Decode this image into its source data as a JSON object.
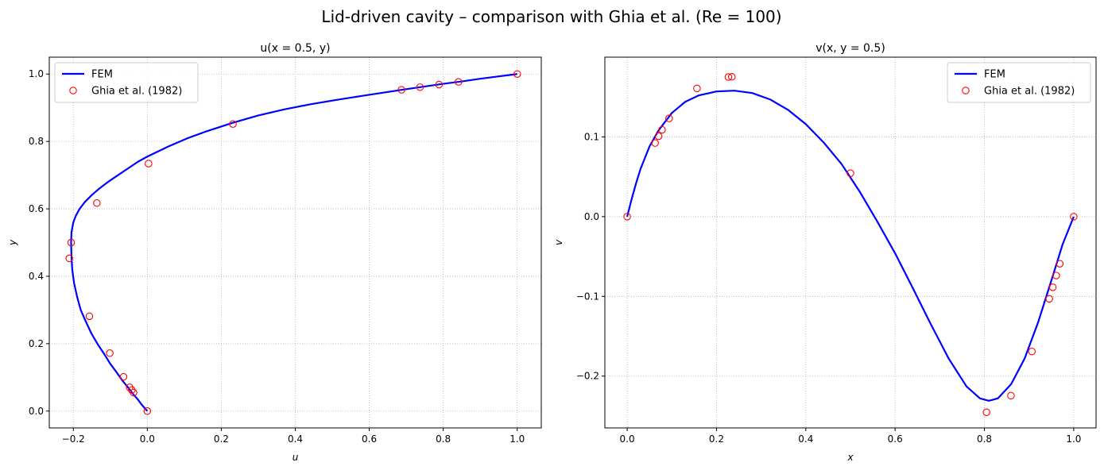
{
  "figure": {
    "suptitle": "Lid-driven cavity – comparison with Ghia et al. (Re = 100)"
  },
  "chart_data": [
    {
      "type": "line",
      "title": "u(x = 0.5,  y)",
      "xlabel": "u",
      "ylabel": "y",
      "xlim": [
        -0.265,
        1.065
      ],
      "ylim": [
        -0.05,
        1.05
      ],
      "xticks": [
        "−0.2",
        "0.0",
        "0.2",
        "0.4",
        "0.6",
        "0.8",
        "1.0"
      ],
      "yticks": [
        "0.0",
        "0.2",
        "0.4",
        "0.6",
        "0.8",
        "1.0"
      ],
      "grid": true,
      "legend": {
        "position": "top-left",
        "entries": [
          "FEM",
          "Ghia et al. (1982)"
        ]
      },
      "series": [
        {
          "name": "FEM",
          "style": "line",
          "color": "#0000ff",
          "x": [
            0.0,
            -0.008,
            -0.016,
            -0.026,
            -0.038,
            -0.052,
            -0.067,
            -0.083,
            -0.1,
            -0.117,
            -0.135,
            -0.151,
            -0.166,
            -0.18,
            -0.19,
            -0.198,
            -0.203,
            -0.205,
            -0.206,
            -0.205,
            -0.2,
            -0.193,
            -0.183,
            -0.169,
            -0.151,
            -0.13,
            -0.106,
            -0.079,
            -0.052,
            -0.025,
            0.0,
            0.057,
            0.11,
            0.16,
            0.23,
            0.3,
            0.37,
            0.44,
            0.51,
            0.58,
            0.64,
            0.7,
            0.75,
            0.8,
            0.85,
            0.9,
            0.95,
            1.0
          ],
          "y": [
            0.0,
            0.01,
            0.02,
            0.035,
            0.05,
            0.07,
            0.09,
            0.115,
            0.14,
            0.17,
            0.2,
            0.23,
            0.265,
            0.3,
            0.34,
            0.38,
            0.42,
            0.46,
            0.5,
            0.53,
            0.56,
            0.58,
            0.6,
            0.62,
            0.64,
            0.66,
            0.68,
            0.7,
            0.72,
            0.74,
            0.755,
            0.785,
            0.81,
            0.83,
            0.855,
            0.877,
            0.895,
            0.91,
            0.923,
            0.935,
            0.945,
            0.955,
            0.963,
            0.971,
            0.978,
            0.986,
            0.993,
            1.0
          ]
        },
        {
          "name": "Ghia et al. (1982)",
          "style": "markers",
          "color": "#ff0000",
          "x": [
            0.0,
            -0.0372,
            -0.0419,
            -0.0478,
            -0.0643,
            -0.1015,
            -0.1566,
            -0.2109,
            -0.2058,
            -0.1364,
            0.0033,
            0.2315,
            0.6872,
            0.7372,
            0.7887,
            0.8412,
            1.0
          ],
          "y": [
            0.0,
            0.0547,
            0.0625,
            0.0703,
            0.1016,
            0.1719,
            0.2813,
            0.4531,
            0.5,
            0.6172,
            0.7344,
            0.8516,
            0.9531,
            0.9609,
            0.9688,
            0.9766,
            1.0
          ]
        }
      ]
    },
    {
      "type": "line",
      "title": "v(x,  y = 0.5)",
      "xlabel": "x",
      "ylabel": "v",
      "xlim": [
        -0.05,
        1.05
      ],
      "ylim": [
        -0.265,
        0.2
      ],
      "xticks": [
        "0.0",
        "0.2",
        "0.4",
        "0.6",
        "0.8",
        "1.0"
      ],
      "yticks": [
        "−0.2",
        "−0.1",
        "0.0",
        "0.1"
      ],
      "grid": true,
      "legend": {
        "position": "top-right",
        "entries": [
          "FEM",
          "Ghia et al. (1982)"
        ]
      },
      "series": [
        {
          "name": "FEM",
          "style": "line",
          "color": "#0000ff",
          "x": [
            0.0,
            0.01,
            0.02,
            0.03,
            0.05,
            0.07,
            0.1,
            0.13,
            0.16,
            0.2,
            0.24,
            0.28,
            0.32,
            0.36,
            0.4,
            0.44,
            0.48,
            0.52,
            0.56,
            0.6,
            0.64,
            0.68,
            0.72,
            0.76,
            0.79,
            0.81,
            0.83,
            0.86,
            0.89,
            0.92,
            0.95,
            0.975,
            1.0
          ],
          "y": [
            0.0,
            0.022,
            0.042,
            0.06,
            0.088,
            0.108,
            0.13,
            0.144,
            0.152,
            0.157,
            0.158,
            0.155,
            0.147,
            0.134,
            0.116,
            0.093,
            0.066,
            0.032,
            -0.006,
            -0.046,
            -0.09,
            -0.135,
            -0.178,
            -0.213,
            -0.228,
            -0.231,
            -0.228,
            -0.21,
            -0.178,
            -0.133,
            -0.08,
            -0.035,
            0.0
          ]
        },
        {
          "name": "Ghia et al. (1982)",
          "style": "markers",
          "color": "#ff0000",
          "x": [
            0.0,
            0.0625,
            0.0703,
            0.0781,
            0.0938,
            0.1563,
            0.2266,
            0.2344,
            0.5,
            0.8047,
            0.8594,
            0.9063,
            0.9453,
            0.9531,
            0.9609,
            0.9688,
            1.0
          ],
          "y": [
            0.0,
            0.0923,
            0.1009,
            0.1089,
            0.1232,
            0.1608,
            0.1751,
            0.1753,
            0.0545,
            -0.2453,
            -0.2245,
            -0.1691,
            -0.1031,
            -0.0886,
            -0.0739,
            -0.0591,
            0.0
          ]
        }
      ]
    }
  ]
}
